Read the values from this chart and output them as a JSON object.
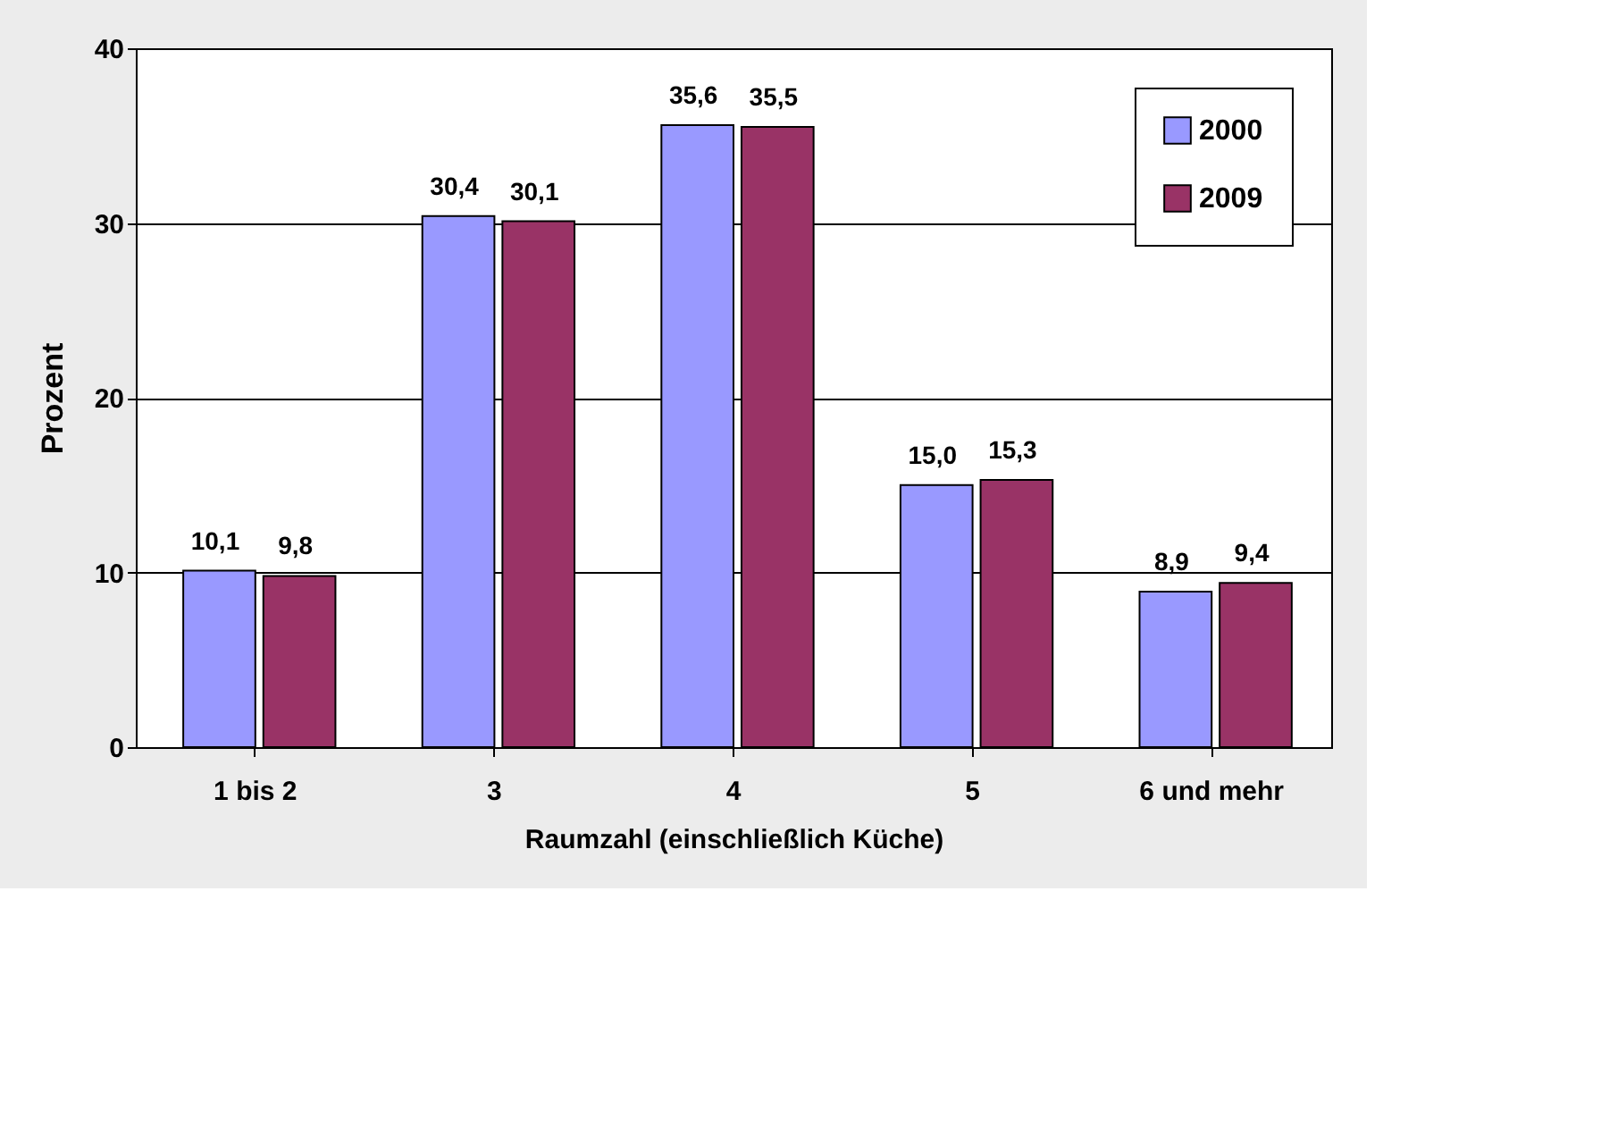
{
  "chart_data": {
    "type": "bar",
    "xlabel": "Raumzahl (einschließlich Küche)",
    "ylabel": "Prozent",
    "categories": [
      "1 bis 2",
      "3",
      "4",
      "5",
      "6 und mehr"
    ],
    "series": [
      {
        "name": "2000",
        "color": "#9999ff",
        "values": [
          10.1,
          30.4,
          35.6,
          15.0,
          8.9
        ],
        "value_labels": [
          "10,1",
          "30,4",
          "35,6",
          "15,0",
          "8,9"
        ]
      },
      {
        "name": "2009",
        "color": "#993366",
        "values": [
          9.8,
          30.1,
          35.5,
          15.3,
          9.4
        ],
        "value_labels": [
          "9,8",
          "30,1",
          "35,5",
          "15,3",
          "9,4"
        ]
      }
    ],
    "ylim": [
      0,
      40
    ],
    "yticks": [
      0,
      10,
      20,
      30,
      40
    ],
    "grid": "y",
    "legend": "top right"
  }
}
